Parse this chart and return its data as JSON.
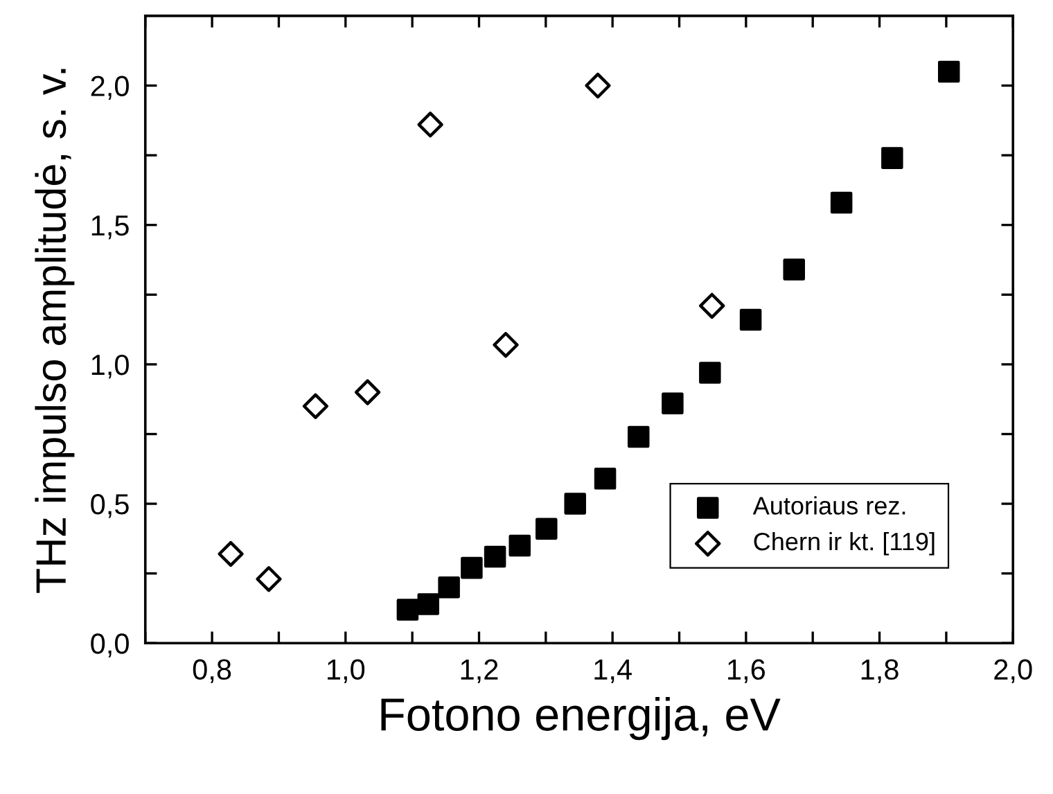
{
  "chart_data": {
    "type": "scatter",
    "xlabel": "Fotono energija, eV",
    "ylabel": "THz impulso amplitudė, s. v.",
    "xlim": [
      0.7,
      2.0
    ],
    "ylim": [
      0,
      2.25
    ],
    "xticks": [
      {
        "value": 0.7,
        "label": null
      },
      {
        "value": 0.8,
        "label": "0,8"
      },
      {
        "value": 0.9,
        "label": null
      },
      {
        "value": 1.0,
        "label": "1,0"
      },
      {
        "value": 1.1,
        "label": null
      },
      {
        "value": 1.2,
        "label": "1,2"
      },
      {
        "value": 1.3,
        "label": null
      },
      {
        "value": 1.4,
        "label": "1,4"
      },
      {
        "value": 1.5,
        "label": null
      },
      {
        "value": 1.6,
        "label": "1,6"
      },
      {
        "value": 1.7,
        "label": null
      },
      {
        "value": 1.8,
        "label": "1,8"
      },
      {
        "value": 1.9,
        "label": null
      },
      {
        "value": 2.0,
        "label": "2,0"
      }
    ],
    "yticks": [
      {
        "value": 0,
        "label": "0,0"
      },
      {
        "value": 0.25,
        "label": null
      },
      {
        "value": 0.5,
        "label": "0,5"
      },
      {
        "value": 0.75,
        "label": null
      },
      {
        "value": 1.0,
        "label": "1,0"
      },
      {
        "value": 1.25,
        "label": null
      },
      {
        "value": 1.5,
        "label": "1,5"
      },
      {
        "value": 1.75,
        "label": null
      },
      {
        "value": 2.0,
        "label": "2,0"
      }
    ],
    "grid": false,
    "legend": "bottom right",
    "series": [
      {
        "name": "Autoriaus rez.",
        "color": "#000000",
        "marker": "square",
        "x": [
          1.093,
          1.124,
          1.155,
          1.189,
          1.224,
          1.261,
          1.301,
          1.344,
          1.389,
          1.439,
          1.49,
          1.546,
          1.607,
          1.672,
          1.743,
          1.819,
          1.904
        ],
        "values": [
          0.12,
          0.14,
          0.2,
          0.27,
          0.31,
          0.35,
          0.41,
          0.5,
          0.59,
          0.74,
          0.86,
          0.97,
          1.16,
          1.34,
          1.58,
          1.74,
          2.05
        ]
      },
      {
        "name": "Chern ir kt. [119]",
        "color": "#000000",
        "marker": "diamond",
        "x": [
          0.828,
          0.885,
          0.955,
          1.033,
          1.127,
          1.24,
          1.378,
          1.549
        ],
        "values": [
          0.32,
          0.23,
          0.85,
          0.9,
          1.86,
          1.07,
          2.0,
          1.21
        ]
      }
    ]
  }
}
